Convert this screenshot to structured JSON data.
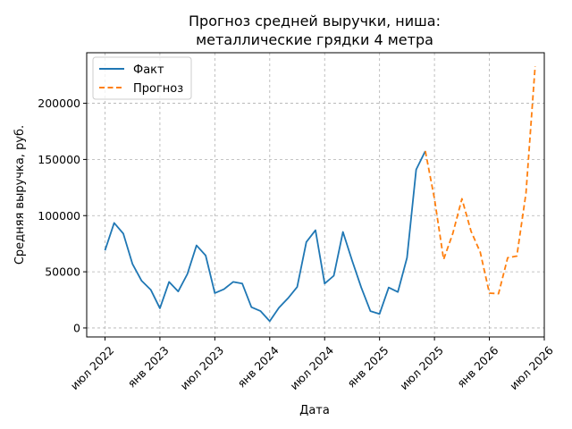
{
  "chart_data": {
    "type": "line",
    "title_lines": [
      "Прогноз средней выручки, ниша:",
      "металлические грядки 4 метра"
    ],
    "xlabel": "Дата",
    "ylabel": "Средняя выручка, руб.",
    "x_axis": "months",
    "x_range": [
      "2022-05",
      "2026-07"
    ],
    "ylim": [
      -8000,
      245000
    ],
    "grid": true,
    "grid_style": "dashed",
    "legend_position": "top-left",
    "x_ticks": [
      {
        "month": "2022-07",
        "label": "июл 2022"
      },
      {
        "month": "2023-01",
        "label": "янв 2023"
      },
      {
        "month": "2023-07",
        "label": "июл 2023"
      },
      {
        "month": "2024-01",
        "label": "янв 2024"
      },
      {
        "month": "2024-07",
        "label": "июл 2024"
      },
      {
        "month": "2025-01",
        "label": "янв 2025"
      },
      {
        "month": "2025-07",
        "label": "июл 2025"
      },
      {
        "month": "2026-01",
        "label": "янв 2026"
      },
      {
        "month": "2026-07",
        "label": "июл 2026"
      }
    ],
    "y_ticks": [
      {
        "value": 0,
        "label": "0"
      },
      {
        "value": 50000,
        "label": "50000"
      },
      {
        "value": 100000,
        "label": "100000"
      },
      {
        "value": 150000,
        "label": "150000"
      },
      {
        "value": 200000,
        "label": "200000"
      }
    ],
    "series": [
      {
        "name": "Факт",
        "color": "#1f77b4",
        "style": "solid",
        "points": [
          {
            "x": "2022-07",
            "y": 69000
          },
          {
            "x": "2022-08",
            "y": 93500
          },
          {
            "x": "2022-09",
            "y": 84000
          },
          {
            "x": "2022-10",
            "y": 57000
          },
          {
            "x": "2022-11",
            "y": 42000
          },
          {
            "x": "2022-12",
            "y": 34000
          },
          {
            "x": "2023-01",
            "y": 17500
          },
          {
            "x": "2023-02",
            "y": 41000
          },
          {
            "x": "2023-03",
            "y": 32500
          },
          {
            "x": "2023-04",
            "y": 48000
          },
          {
            "x": "2023-05",
            "y": 73500
          },
          {
            "x": "2023-06",
            "y": 64500
          },
          {
            "x": "2023-07",
            "y": 31000
          },
          {
            "x": "2023-08",
            "y": 34500
          },
          {
            "x": "2023-09",
            "y": 41000
          },
          {
            "x": "2023-10",
            "y": 39500
          },
          {
            "x": "2023-11",
            "y": 18500
          },
          {
            "x": "2023-12",
            "y": 15000
          },
          {
            "x": "2024-01",
            "y": 6000
          },
          {
            "x": "2024-02",
            "y": 18000
          },
          {
            "x": "2024-03",
            "y": 26500
          },
          {
            "x": "2024-04",
            "y": 36500
          },
          {
            "x": "2024-05",
            "y": 76500
          },
          {
            "x": "2024-06",
            "y": 87000
          },
          {
            "x": "2024-07",
            "y": 39500
          },
          {
            "x": "2024-08",
            "y": 46500
          },
          {
            "x": "2024-09",
            "y": 85500
          },
          {
            "x": "2024-10",
            "y": 60000
          },
          {
            "x": "2024-11",
            "y": 36000
          },
          {
            "x": "2024-12",
            "y": 15000
          },
          {
            "x": "2025-01",
            "y": 12500
          },
          {
            "x": "2025-02",
            "y": 36000
          },
          {
            "x": "2025-03",
            "y": 32000
          },
          {
            "x": "2025-04",
            "y": 62500
          },
          {
            "x": "2025-05",
            "y": 141000
          },
          {
            "x": "2025-06",
            "y": 157500
          }
        ]
      },
      {
        "name": "Прогноз",
        "color": "#ff7f0e",
        "style": "dashed",
        "points": [
          {
            "x": "2025-06",
            "y": 157500
          },
          {
            "x": "2025-07",
            "y": 115000
          },
          {
            "x": "2025-08",
            "y": 61000
          },
          {
            "x": "2025-09",
            "y": 84000
          },
          {
            "x": "2025-10",
            "y": 115000
          },
          {
            "x": "2025-11",
            "y": 86000
          },
          {
            "x": "2025-12",
            "y": 67500
          },
          {
            "x": "2026-01",
            "y": 31000
          },
          {
            "x": "2026-02",
            "y": 30500
          },
          {
            "x": "2026-03",
            "y": 62500
          },
          {
            "x": "2026-04",
            "y": 64000
          },
          {
            "x": "2026-05",
            "y": 120000
          },
          {
            "x": "2026-06",
            "y": 233000
          }
        ]
      }
    ]
  }
}
